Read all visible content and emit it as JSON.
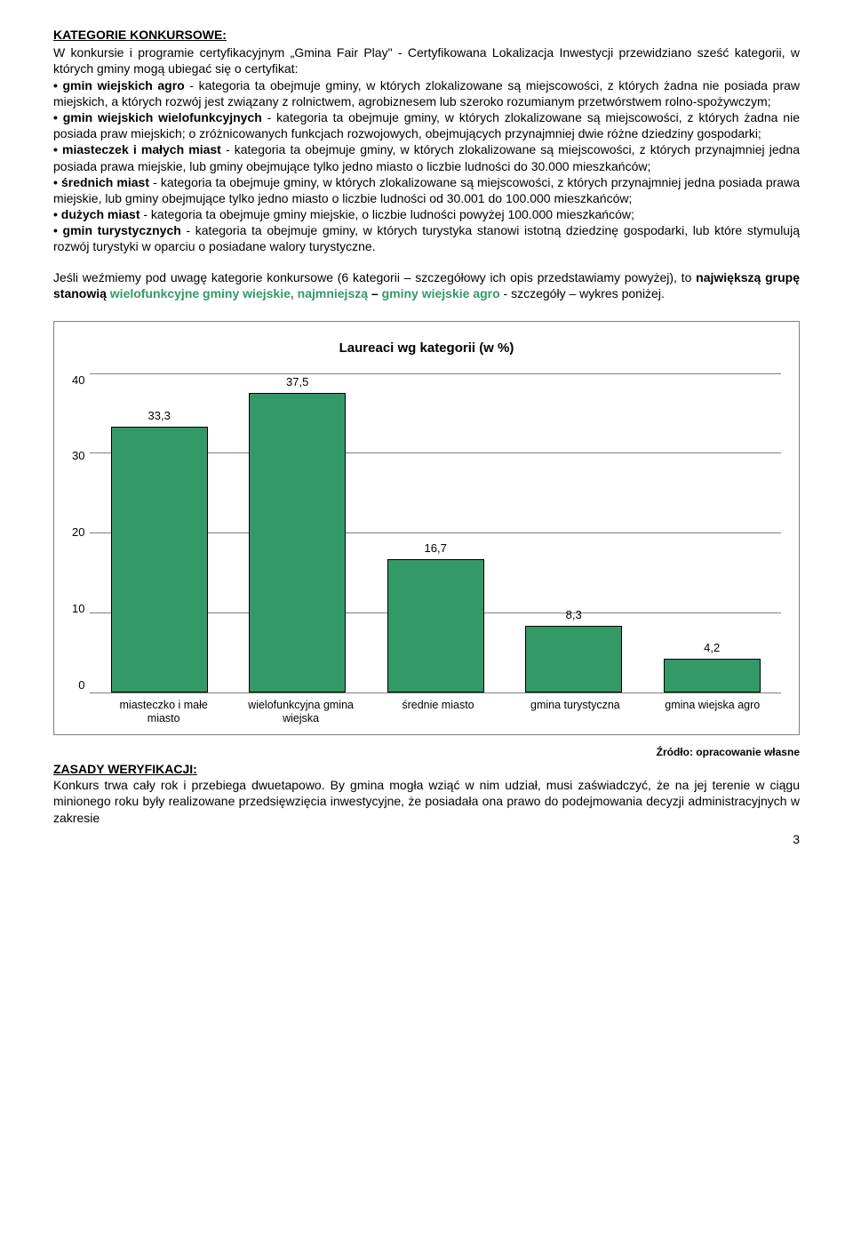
{
  "headings": {
    "kategorie": "KATEGORIE KONKURSOWE:",
    "zasady": "ZASADY WERYFIKACJI:"
  },
  "para1_intro": "W konkursie i programie certyfikacyjnym „Gmina Fair Play\"  - Certyfikowana Lokalizacja Inwestycji przewidziano sześć kategorii, w których gminy mogą ubiegać się o certyfikat:",
  "bullets": {
    "b1_lead": "• gmin wiejskich agro",
    "b1_rest": " - kategoria ta obejmuje gminy, w których zlokalizowane są miejscowości, z których żadna nie posiada praw miejskich, a których rozwój jest związany z rolnictwem, agrobiznesem lub szeroko rozumianym przetwórstwem rolno-spożywczym;",
    "b2_lead": "• gmin wiejskich wielofunkcyjnych",
    "b2_rest": " - kategoria ta obejmuje gminy, w których zlokalizowane są miejscowości, z których żadna nie posiada praw miejskich; o zróżnicowanych funkcjach rozwojowych, obejmujących przynajmniej dwie różne dziedziny gospodarki;",
    "b3_lead": "• miasteczek i małych miast",
    "b3_rest": " - kategoria ta obejmuje gminy, w których zlokalizowane są miejscowości, z których przynajmniej jedna posiada prawa miejskie, lub gminy obejmujące tylko jedno miasto o liczbie ludności do 30.000 mieszkańców;",
    "b4_lead": "• średnich miast",
    "b4_rest": " - kategoria ta obejmuje gminy, w których zlokalizowane są miejscowości, z których przynajmniej jedna posiada prawa miejskie, lub gminy obejmujące tylko jedno miasto o liczbie ludności od 30.001 do 100.000 mieszkańców;",
    "b5_lead": "• dużych miast",
    "b5_rest": " - kategoria ta obejmuje gminy miejskie, o liczbie ludności powyżej 100.000 mieszkańców;",
    "b6_lead": "• gmin turystycznych",
    "b6_rest": " - kategoria ta obejmuje gminy, w których turystyka stanowi istotną dziedzinę gospodarki, lub które stymulują rozwój turystyki w oparciu o posiadane walory turystyczne."
  },
  "para2": {
    "p1": "Jeśli weźmiemy pod uwagę kategorie konkursowe (6 kategorii – szczegółowy ich opis przedstawiamy powyżej), to ",
    "p2_bold": "największą grupę stanowią ",
    "p3_green_bold": "wielofunkcyjne gminy wiejskie, najmniejszą",
    "p4_bold": " – ",
    "p5_green_bold": "gminy wiejskie agro",
    "p6": " - szczegóły – wykres poniżej."
  },
  "chart": {
    "title": "Laureaci wg kategorii (w %)",
    "ylim_max": 40,
    "ytick_step": 10,
    "yticks": [
      "40",
      "30",
      "20",
      "10",
      "0"
    ],
    "bar_color": "#339966",
    "border_color": "#000000",
    "grid_color": "#808080",
    "background_color": "#ffffff",
    "title_fontsize": 15,
    "label_fontsize": 13,
    "xlabel_fontsize": 12.5,
    "bar_width_pct": 78,
    "categories": [
      "miasteczko i małe miasto",
      "wielofunkcyjna gmina wiejska",
      "średnie miasto",
      "gmina turystyczna",
      "gmina wiejska agro"
    ],
    "values": [
      33.3,
      37.5,
      16.7,
      8.3,
      4.2
    ],
    "value_labels": [
      "33,3",
      "37,5",
      "16,7",
      "8,3",
      "4,2"
    ]
  },
  "source": "Źródło: opracowanie własne",
  "para3": "Konkurs trwa cały rok i przebiega dwuetapowo. By gmina mogła wziąć w nim udział, musi zaświadczyć, że na jej terenie w ciągu minionego roku były realizowane przedsięwzięcia inwestycyjne, że posiadała ona prawo do podejmowania decyzji administracyjnych w zakresie",
  "page_number": "3"
}
